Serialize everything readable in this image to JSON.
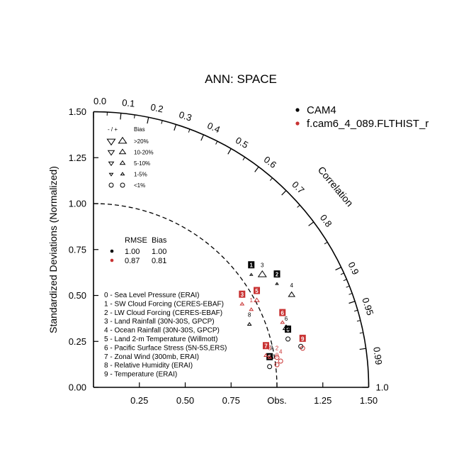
{
  "chart_data": {
    "type": "scatter",
    "title": "ANN: SPACE",
    "ylabel": "Standardized Deviations (Normalized)",
    "correlation_label": "Correlation",
    "obs_label": "Obs.",
    "xlim": [
      0,
      1.5
    ],
    "ylim": [
      0,
      1.5
    ],
    "x_ticks": [
      {
        "v": 0.25,
        "label": "0.25"
      },
      {
        "v": 0.5,
        "label": "0.50"
      },
      {
        "v": 0.75,
        "label": "0.75"
      },
      {
        "v": 1.25,
        "label": "1.25"
      },
      {
        "v": 1.5,
        "label": "1.50"
      }
    ],
    "y_ticks": [
      {
        "v": 0,
        "label": "0.00"
      },
      {
        "v": 0.25,
        "label": "0.25"
      },
      {
        "v": 0.5,
        "label": "0.50"
      },
      {
        "v": 0.75,
        "label": "0.75"
      },
      {
        "v": 1.0,
        "label": "1.00"
      },
      {
        "v": 1.25,
        "label": "1.25"
      },
      {
        "v": 1.5,
        "label": "1.50"
      }
    ],
    "corr_ticks": [
      {
        "v": 0.0,
        "label": "0.0"
      },
      {
        "v": 0.1,
        "label": "0.1"
      },
      {
        "v": 0.2,
        "label": "0.2"
      },
      {
        "v": 0.3,
        "label": "0.3"
      },
      {
        "v": 0.4,
        "label": "0.4"
      },
      {
        "v": 0.5,
        "label": "0.5"
      },
      {
        "v": 0.6,
        "label": "0.6"
      },
      {
        "v": 0.7,
        "label": "0.7"
      },
      {
        "v": 0.8,
        "label": "0.8"
      },
      {
        "v": 0.9,
        "label": "0.9"
      },
      {
        "v": 0.95,
        "label": "0.95"
      },
      {
        "v": 0.99,
        "label": "0.99"
      },
      {
        "v": 1.0,
        "label": "1.0"
      }
    ],
    "legend": {
      "models": [
        {
          "name": "CAM4",
          "color": "#000000"
        },
        {
          "name": "f.cam6_4_089.FLTHIST_r",
          "color": "#c83232"
        }
      ]
    },
    "bias_legend": {
      "header_sign": "- / +",
      "header_bias": "Bias",
      "rows": [
        {
          "label": ">20%",
          "shape": "triangle",
          "size": 9
        },
        {
          "label": "10-20%",
          "shape": "triangle",
          "size": 7
        },
        {
          "label": "5-10%",
          "shape": "triangle",
          "size": 5.5
        },
        {
          "label": "1-5%",
          "shape": "triangle",
          "size": 4
        },
        {
          "label": "<1%",
          "shape": "circle",
          "size": 3
        }
      ]
    },
    "summary_table": {
      "header_rmse": "RMSE",
      "header_bias": "Bias",
      "rows": [
        {
          "rmse": "1.00",
          "bias": "1.00",
          "color": "#000000"
        },
        {
          "rmse": "0.87",
          "bias": "0.81",
          "color": "#c83232"
        }
      ]
    },
    "variables": [
      "0 - Sea Level Pressure (ERAI)",
      "1 - SW Cloud Forcing (CERES-EBAF)",
      "2 - LW Cloud Forcing (CERES-EBAF)",
      "3 - Land Rainfall (30N-30S, GPCP)",
      "4 - Ocean Rainfall (30N-30S, GPCP)",
      "5 - Land 2-m Temperature (Willmott)",
      "6 - Pacific Surface Stress (5N-5S,ERS)",
      "7 - Zonal Wind (300mb, ERAI)",
      "8 - Relative Humidity (ERAI)",
      "9 - Temperature (ERAI)"
    ],
    "series": [
      {
        "name": "CAM4",
        "color": "#000000",
        "points": [
          {
            "id": "0",
            "x": 1.06,
            "y": 0.29,
            "mk": "circle",
            "dir": "up",
            "size": 3,
            "boxed": true
          },
          {
            "id": "1",
            "x": 0.86,
            "y": 0.64,
            "mk": "triangle",
            "dir": "up",
            "size": 3,
            "boxed": true
          },
          {
            "id": "2",
            "x": 1.0,
            "y": 0.59,
            "mk": "triangle",
            "dir": "up",
            "size": 3,
            "boxed": true
          },
          {
            "id": "3",
            "x": 0.92,
            "y": 0.64,
            "mk": "triangle",
            "dir": "up",
            "size": 9,
            "boxed": false
          },
          {
            "id": "4",
            "x": 1.08,
            "y": 0.53,
            "mk": "triangle",
            "dir": "up",
            "size": 7,
            "boxed": false
          },
          {
            "id": "5",
            "x": 0.96,
            "y": 0.14,
            "mk": "circle",
            "dir": "up",
            "size": 3,
            "boxed": true
          },
          {
            "id": "6",
            "x": 1.05,
            "y": 0.35,
            "mk": "triangle",
            "dir": "up",
            "size": 7,
            "boxed": false
          },
          {
            "id": "7",
            "x": 0.97,
            "y": 0.19,
            "mk": "triangle",
            "dir": "up",
            "size": 4,
            "boxed": false
          },
          {
            "id": "8",
            "x": 0.85,
            "y": 0.37,
            "mk": "triangle",
            "dir": "up",
            "size": 4,
            "boxed": false
          },
          {
            "id": "9",
            "x": 1.13,
            "y": 0.25,
            "mk": "circle",
            "dir": "up",
            "size": 3,
            "boxed": false
          }
        ]
      },
      {
        "name": "f.cam6_4_089.FLTHIST_r",
        "color": "#c83232",
        "points": [
          {
            "id": "0",
            "x": 1.0,
            "y": 0.15,
            "mk": "circle",
            "dir": "up",
            "size": 3,
            "boxed": false
          },
          {
            "id": "1",
            "x": 0.86,
            "y": 0.45,
            "mk": "triangle",
            "dir": "up",
            "size": 4,
            "boxed": false
          },
          {
            "id": "2",
            "x": 1.0,
            "y": 0.19,
            "mk": "circle",
            "dir": "up",
            "size": 3,
            "boxed": false
          },
          {
            "id": "3",
            "x": 0.81,
            "y": 0.48,
            "mk": "triangle",
            "dir": "up",
            "size": 4,
            "boxed": true
          },
          {
            "id": "4",
            "x": 1.02,
            "y": 0.17,
            "mk": "circle",
            "dir": "up",
            "size": 3,
            "boxed": false
          },
          {
            "id": "5",
            "x": 0.89,
            "y": 0.5,
            "mk": "triangle",
            "dir": "up",
            "size": 5.5,
            "boxed": true
          },
          {
            "id": "6",
            "x": 1.03,
            "y": 0.38,
            "mk": "triangle",
            "dir": "up",
            "size": 4,
            "boxed": true
          },
          {
            "id": "7",
            "x": 0.94,
            "y": 0.2,
            "mk": "triangle",
            "dir": "up",
            "size": 4,
            "boxed": true
          },
          {
            "id": "8",
            "x": 0.96,
            "y": 0.19,
            "mk": "triangle",
            "dir": "up",
            "size": 4,
            "boxed": false
          },
          {
            "id": "9",
            "x": 1.14,
            "y": 0.24,
            "mk": "circle",
            "dir": "up",
            "size": 3,
            "boxed": true
          }
        ]
      }
    ]
  }
}
